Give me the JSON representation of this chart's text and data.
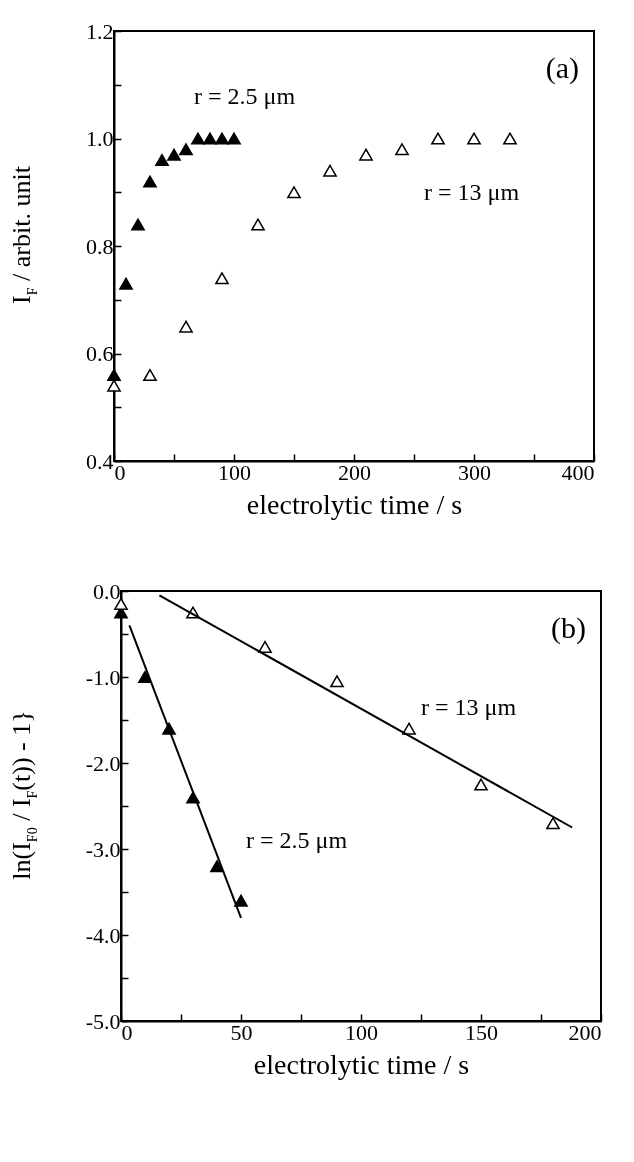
{
  "chart_data": [
    {
      "type": "scatter",
      "xlabel": "electrolytic time / s",
      "ylabel": "I$_{F}$ / arbit. unit",
      "marker": "triangle",
      "grid": false,
      "xlim": [
        0,
        400
      ],
      "xticks": [
        0,
        {
          "value": 50,
          "label": null
        },
        100,
        {
          "value": 150,
          "label": null
        },
        200,
        {
          "value": 250,
          "label": null
        },
        300,
        {
          "value": 350,
          "label": null
        },
        400
      ],
      "ylim": [
        0.4,
        1.2
      ],
      "yticks": [
        "0.4",
        {
          "value": 0.5,
          "label": null
        },
        {
          "value": 0.6,
          "label": "0.6"
        },
        {
          "value": 0.7,
          "label": null
        },
        {
          "value": 0.8,
          "label": "0.8"
        },
        {
          "value": 0.9,
          "label": null
        },
        {
          "value": 1.0,
          "label": "1.0"
        },
        {
          "value": 1.1,
          "label": null
        },
        {
          "value": 1.2,
          "label": "1.2"
        }
      ],
      "annotations": [
        "(a)",
        "r = 2.5 μm",
        "r = 13 μm"
      ],
      "series": [
        {
          "color": "#000000",
          "x": [
            0,
            10,
            20,
            30,
            40,
            50,
            60,
            70,
            80,
            90,
            100
          ],
          "values": [
            0.56,
            0.73,
            0.84,
            0.92,
            0.96,
            0.97,
            0.98,
            1.0,
            1.0,
            1.0,
            1.0
          ]
        },
        {
          "color": "#ffffff",
          "x": [
            0,
            30,
            60,
            90,
            120,
            150,
            180,
            210,
            240,
            270,
            300,
            330
          ],
          "values": [
            0.54,
            0.56,
            0.65,
            0.74,
            0.84,
            0.9,
            0.94,
            0.97,
            0.98,
            1.0,
            1.0,
            1.0
          ]
        }
      ]
    },
    {
      "type": "scatter",
      "xlabel": "electrolytic time / s",
      "ylabel": "ln(I$_{F0}$ / I$_{F}$(t)) - 1}",
      "marker": "triangle",
      "grid": false,
      "xlim": [
        0,
        200
      ],
      "xticks": [
        0,
        {
          "value": 25,
          "label": null
        },
        50,
        {
          "value": 75,
          "label": null
        },
        100,
        {
          "value": 125,
          "label": null
        },
        150,
        {
          "value": 175,
          "label": null
        },
        200
      ],
      "ylim": [
        -5,
        0
      ],
      "yticks": [
        {
          "value": -5,
          "label": "-5.0"
        },
        {
          "value": -4.5,
          "label": null
        },
        {
          "value": -4,
          "label": "-4.0"
        },
        {
          "value": -3.5,
          "label": null
        },
        {
          "value": -3,
          "label": "-3.0"
        },
        {
          "value": -2.5,
          "label": null
        },
        {
          "value": -2,
          "label": "-2.0"
        },
        {
          "value": -1.5,
          "label": null
        },
        {
          "value": -1,
          "label": "-1.0"
        },
        {
          "value": -0.5,
          "label": null
        },
        {
          "value": 0,
          "label": "0.0"
        }
      ],
      "annotations": [
        "(b)",
        "r = 13 μm",
        "r = 2.5 μm"
      ],
      "series": [
        {
          "color": "#000000",
          "x": [
            0,
            10,
            20,
            30,
            40,
            50
          ],
          "values": [
            -0.25,
            -1.0,
            -1.6,
            -2.4,
            -3.2,
            -3.6
          ]
        },
        {
          "color": "#ffffff",
          "x": [
            0,
            30,
            60,
            90,
            120,
            150,
            180
          ],
          "values": [
            -0.15,
            -0.25,
            -0.65,
            -1.05,
            -1.6,
            -2.25,
            -2.7
          ]
        },
        {
          "type": "line",
          "marker": "none",
          "color": "#000000",
          "x": [
            3.5,
            50
          ],
          "values": [
            -0.4,
            -3.8
          ]
        },
        {
          "type": "line",
          "marker": "none",
          "color": "#000000",
          "x": [
            16,
            188
          ],
          "values": [
            -0.05,
            -2.75
          ]
        }
      ]
    }
  ]
}
